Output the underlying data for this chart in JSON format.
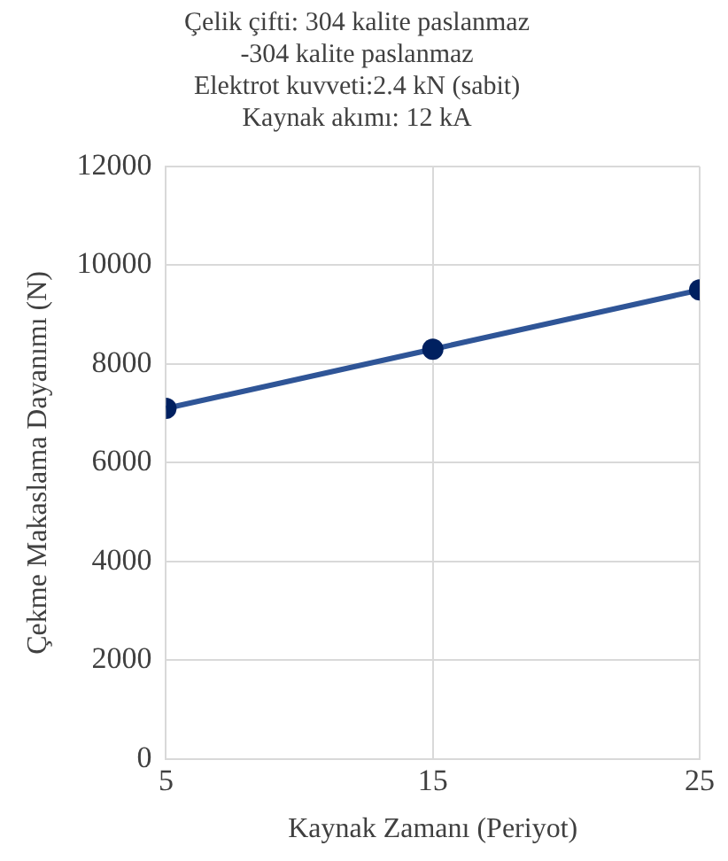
{
  "chart_data": {
    "type": "line",
    "title": "Çelik çifti: 304 kalite paslanmaz\n-304 kalite paslanmaz\nElektrot kuvveti:2.4 kN (sabit)\nKaynak akımı: 12 kA",
    "xlabel": "Kaynak Zamanı (Periyot)",
    "ylabel": "Çekme Makaslama Dayanımı (N)",
    "x": [
      5,
      15,
      25
    ],
    "series": [
      {
        "color": "#2f5597",
        "values": [
          7100,
          8300,
          9500
        ]
      }
    ],
    "xlim": [
      5,
      25
    ],
    "xticks": [
      5,
      15,
      25
    ],
    "ylim": [
      0,
      12000
    ],
    "yticks": [
      0,
      2000,
      4000,
      6000,
      8000,
      10000,
      12000
    ],
    "grid": true,
    "marker": "circle",
    "legend": false
  }
}
